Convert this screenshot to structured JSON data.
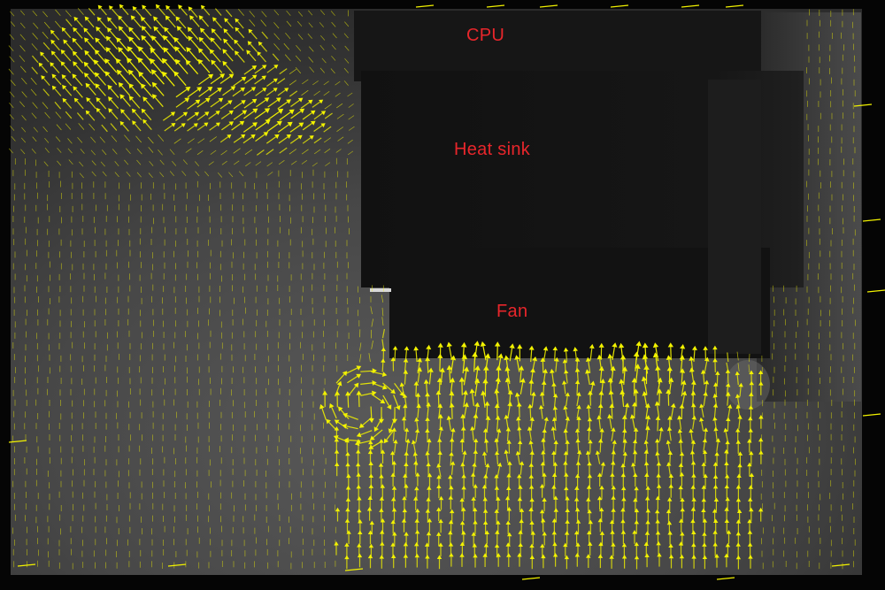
{
  "labels": {
    "cpu": "CPU",
    "heat_sink": "Heat sink",
    "fan": "Fan"
  },
  "colors": {
    "vector_color": "#f2f200",
    "label_color": "#e8262b",
    "background_gray": "#4a4a4a",
    "heat_sink_dark": "#141414"
  },
  "icons": {
    "vector": "arrow-vector-icon"
  }
}
